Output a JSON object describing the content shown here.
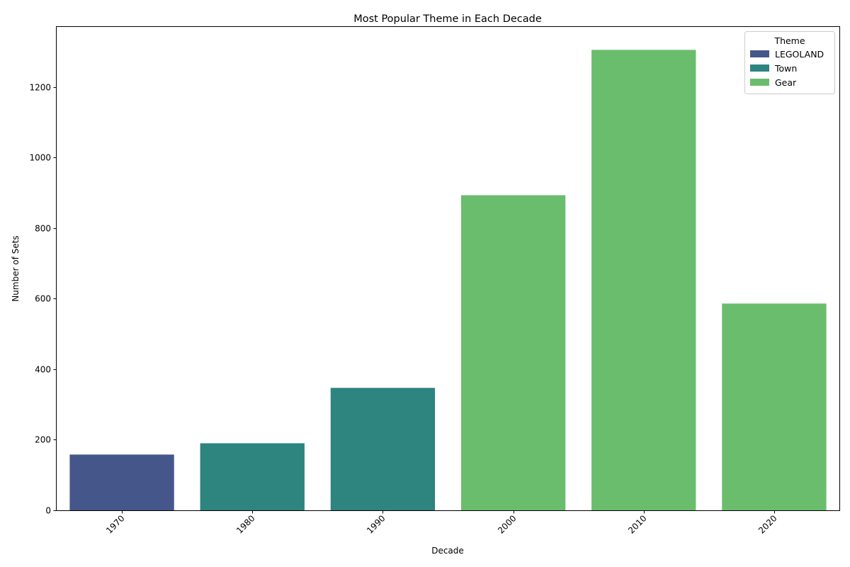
{
  "chart_data": {
    "type": "bar",
    "title": "Most Popular Theme in Each Decade",
    "xlabel": "Decade",
    "ylabel": "Number of Sets",
    "categories": [
      "1970",
      "1980",
      "1990",
      "2000",
      "2010",
      "2020"
    ],
    "values": [
      158,
      190,
      347,
      893,
      1305,
      586
    ],
    "themes": [
      "LEGOLAND",
      "Town",
      "Town",
      "Gear",
      "Gear",
      "Gear"
    ],
    "ylim": [
      0,
      1370
    ],
    "yticks": [
      "0",
      "200",
      "400",
      "600",
      "800",
      "1000",
      "1200"
    ],
    "grid": false,
    "legend": {
      "title": "Theme",
      "placement": "top-right",
      "entries": [
        {
          "name": "LEGOLAND",
          "color": "#45578a"
        },
        {
          "name": "Town",
          "color": "#2e847f"
        },
        {
          "name": "Gear",
          "color": "#6abd6d"
        }
      ]
    }
  }
}
